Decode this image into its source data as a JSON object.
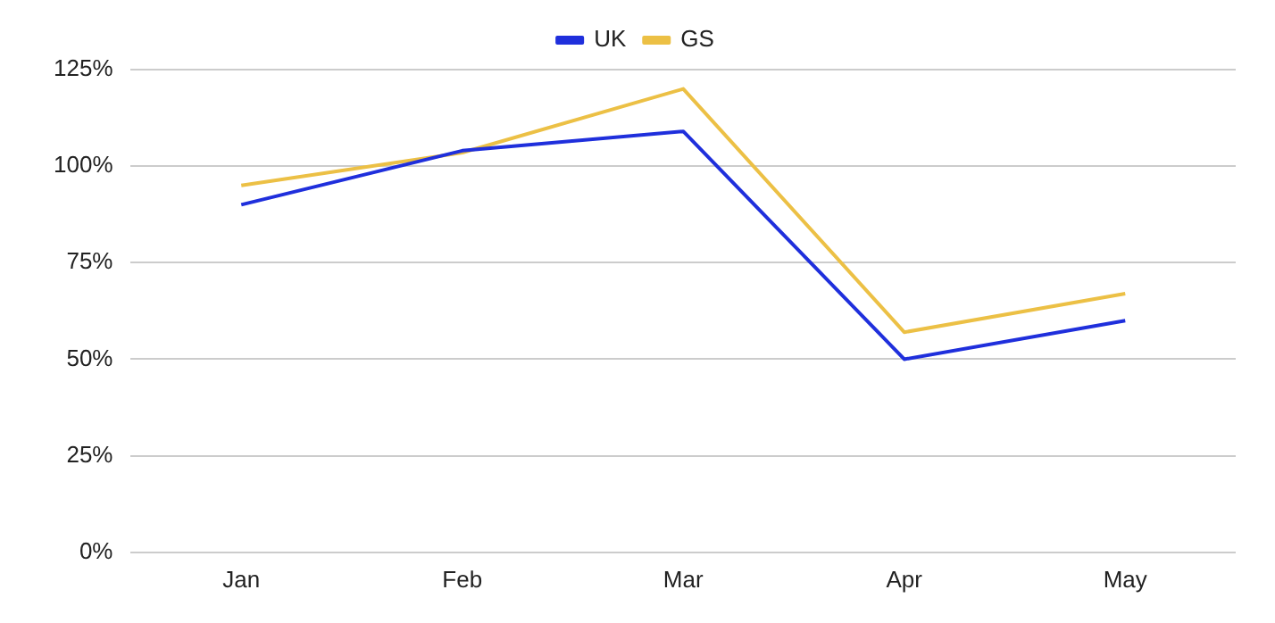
{
  "chart_data": {
    "type": "line",
    "categories": [
      "Jan",
      "Feb",
      "Mar",
      "Apr",
      "May"
    ],
    "series": [
      {
        "name": "UK",
        "color": "#1f2fdc",
        "values": [
          90,
          104,
          109,
          50,
          60
        ]
      },
      {
        "name": "GS",
        "color": "#ecc045",
        "values": [
          95,
          103.5,
          120,
          57,
          67
        ]
      }
    ],
    "ylim": [
      0,
      125
    ],
    "yticks": [
      {
        "value": 0,
        "label": "0%"
      },
      {
        "value": 25,
        "label": "25%"
      },
      {
        "value": 50,
        "label": "50%"
      },
      {
        "value": 75,
        "label": "75%"
      },
      {
        "value": 100,
        "label": "100%"
      },
      {
        "value": 125,
        "label": "125%"
      }
    ],
    "grid": "y",
    "legend": "top",
    "marker": "none",
    "line_style": "solid"
  }
}
